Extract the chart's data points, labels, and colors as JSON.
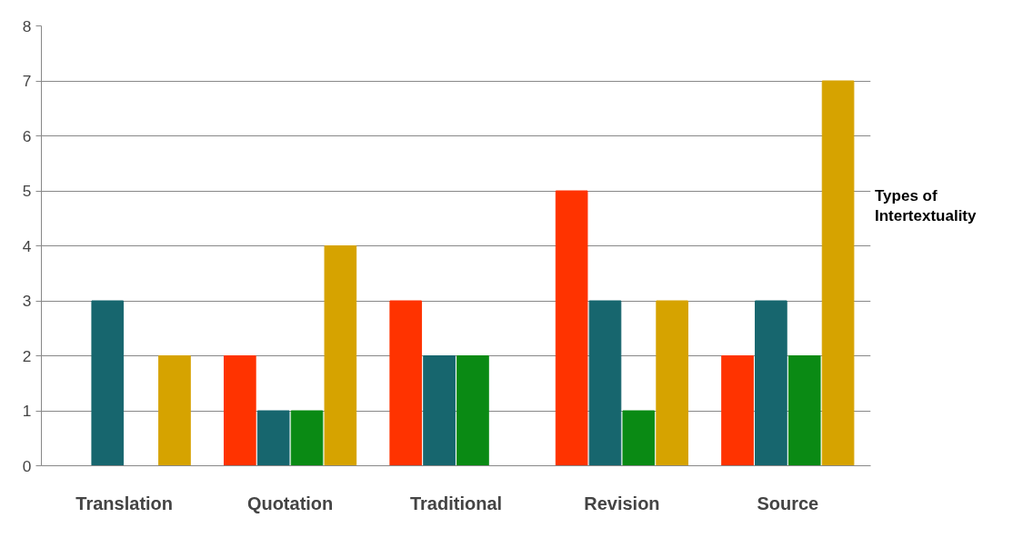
{
  "chart_data": {
    "type": "bar",
    "categories": [
      "Translation",
      "Quotation",
      "Traditional",
      "Revision",
      "Source"
    ],
    "series": [
      {
        "color": "#ff3300",
        "values": [
          0,
          2,
          3,
          5,
          2
        ]
      },
      {
        "color": "#17666e",
        "values": [
          3,
          1,
          2,
          3,
          3
        ]
      },
      {
        "color": "#0a8a14",
        "values": [
          0,
          1,
          2,
          1,
          2
        ]
      },
      {
        "color": "#d6a300",
        "values": [
          2,
          4,
          0,
          3,
          7
        ]
      }
    ],
    "ylim": [
      0,
      8
    ],
    "yticks": [
      0,
      1,
      2,
      3,
      4,
      5,
      6,
      7,
      8
    ],
    "grid": "y",
    "annotations": [
      "Types of Intertextuality"
    ]
  }
}
